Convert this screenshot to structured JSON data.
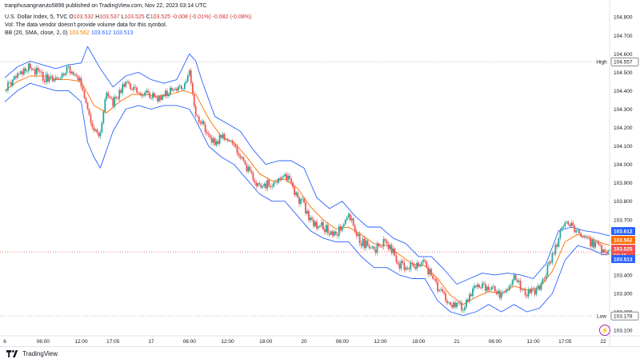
{
  "publisher_line": "tranphusangnaruto5896 published on TradingView.com, Nov 22, 2023 03:14 UTC",
  "symbol_line": {
    "name": "U.S. Dollar Index, 5, TVC",
    "o_label": "O",
    "o": "103.532",
    "h_label": "H",
    "h": "103.537",
    "l_label": "L",
    "l": "103.525",
    "c_label": "C",
    "c": "103.525",
    "change": "-0.008 (-0.01%)",
    "change2": "-0.082 (-0.08%)"
  },
  "volume_line": "Vol: The data vendor doesn't provide volume data for this symbol.",
  "bb_line": {
    "label": "BB (20, SMA, close, 2, 0)",
    "basis": "103.562",
    "upper": "103.612",
    "lower": "103.513"
  },
  "brand": "TradingView",
  "colors": {
    "up": "#26a69a",
    "down": "#ef5350",
    "basis": "#ff6d00",
    "band": "#2962ff",
    "price_tag": "#ef5350"
  },
  "chart_data": {
    "type": "line",
    "title": "U.S. Dollar Index, 5, TVC",
    "ylim": [
      103.07,
      104.84
    ],
    "y_ticks": [
      "104.800",
      "104.700",
      "104.600",
      "104.500",
      "104.400",
      "104.300",
      "104.200",
      "104.100",
      "104.000",
      "103.900",
      "103.800",
      "103.700",
      "103.600",
      "103.500",
      "103.400",
      "103.300",
      "103.200",
      "103.100"
    ],
    "x_ticks": [
      {
        "x": 0,
        "label": "6"
      },
      {
        "x": 12,
        "label": "06:00"
      },
      {
        "x": 24,
        "label": "12:00"
      },
      {
        "x": 34,
        "label": "17:05"
      },
      {
        "x": 46,
        "label": "17"
      },
      {
        "x": 58,
        "label": "06:00"
      },
      {
        "x": 70,
        "label": "12:00"
      },
      {
        "x": 82,
        "label": "18:00"
      },
      {
        "x": 94,
        "label": "20"
      },
      {
        "x": 106,
        "label": "06:00"
      },
      {
        "x": 118,
        "label": "12:00"
      },
      {
        "x": 130,
        "label": "18:00"
      },
      {
        "x": 142,
        "label": "21"
      },
      {
        "x": 154,
        "label": "06:00"
      },
      {
        "x": 166,
        "label": "12:00"
      },
      {
        "x": 176,
        "label": "17:05"
      },
      {
        "x": 188,
        "label": "22"
      }
    ],
    "high": {
      "label": "High",
      "value": "104.557"
    },
    "low": {
      "label": "Low",
      "value": "103.178"
    },
    "series": [
      {
        "kind": "close",
        "x": [
          0,
          4,
          8,
          12,
          16,
          20,
          24,
          26,
          28,
          30,
          32,
          34,
          36,
          38,
          40,
          44,
          48,
          52,
          56,
          58,
          60,
          62,
          64,
          66,
          68,
          72,
          76,
          80,
          84,
          88,
          92,
          94,
          96,
          100,
          104,
          108,
          112,
          116,
          120,
          124,
          128,
          132,
          136,
          140,
          144,
          148,
          152,
          156,
          160,
          164,
          168,
          170,
          172,
          176,
          180,
          184,
          188,
          190
        ],
        "values": [
          104.4,
          104.5,
          104.53,
          104.47,
          104.45,
          104.52,
          104.44,
          104.3,
          104.2,
          104.15,
          104.4,
          104.33,
          104.38,
          104.45,
          104.4,
          104.38,
          104.36,
          104.4,
          104.41,
          104.52,
          104.28,
          104.22,
          104.18,
          104.1,
          104.15,
          104.12,
          103.98,
          103.88,
          103.9,
          103.95,
          103.82,
          103.78,
          103.69,
          103.66,
          103.62,
          103.72,
          103.58,
          103.54,
          103.58,
          103.46,
          103.44,
          103.46,
          103.33,
          103.24,
          103.23,
          103.33,
          103.34,
          103.28,
          103.38,
          103.3,
          103.32,
          103.42,
          103.5,
          103.7,
          103.62,
          103.58,
          103.54,
          103.53
        ]
      },
      {
        "name": "",
        "kind": "basis",
        "x": [
          0,
          4,
          8,
          12,
          16,
          20,
          24,
          28,
          32,
          36,
          40,
          44,
          48,
          52,
          56,
          60,
          64,
          68,
          72,
          76,
          80,
          84,
          88,
          92,
          96,
          100,
          104,
          108,
          112,
          116,
          120,
          124,
          128,
          132,
          136,
          140,
          144,
          148,
          152,
          156,
          160,
          164,
          168,
          172,
          176,
          180,
          184,
          188,
          190
        ],
        "values": [
          104.4,
          104.45,
          104.48,
          104.48,
          104.46,
          104.46,
          104.45,
          104.32,
          104.28,
          104.34,
          104.38,
          104.38,
          104.37,
          104.38,
          104.4,
          104.38,
          104.25,
          104.15,
          104.12,
          104.04,
          103.95,
          103.91,
          103.92,
          103.87,
          103.77,
          103.7,
          103.65,
          103.66,
          103.62,
          103.57,
          103.56,
          103.51,
          103.46,
          103.45,
          103.38,
          103.29,
          103.24,
          103.28,
          103.31,
          103.3,
          103.34,
          103.32,
          103.33,
          103.42,
          103.58,
          103.62,
          103.6,
          103.57,
          103.562
        ]
      },
      {
        "name": "",
        "kind": "upper",
        "x": [
          0,
          4,
          8,
          12,
          16,
          20,
          24,
          26,
          30,
          34,
          38,
          42,
          46,
          50,
          54,
          58,
          60,
          62,
          66,
          70,
          74,
          78,
          82,
          86,
          90,
          94,
          98,
          102,
          106,
          110,
          114,
          118,
          122,
          126,
          130,
          134,
          138,
          142,
          146,
          150,
          154,
          158,
          162,
          166,
          170,
          174,
          178,
          182,
          186,
          190
        ],
        "values": [
          104.47,
          104.53,
          104.56,
          104.54,
          104.52,
          104.54,
          104.55,
          104.64,
          104.52,
          104.42,
          104.48,
          104.5,
          104.46,
          104.44,
          104.46,
          104.6,
          104.56,
          104.45,
          104.26,
          104.22,
          104.18,
          104.08,
          104.0,
          104.02,
          104.02,
          103.98,
          103.82,
          103.76,
          103.8,
          103.72,
          103.66,
          103.66,
          103.6,
          103.57,
          103.5,
          103.5,
          103.43,
          103.35,
          103.38,
          103.41,
          103.4,
          103.41,
          103.4,
          103.38,
          103.46,
          103.64,
          103.66,
          103.64,
          103.63,
          103.612
        ]
      },
      {
        "name": "",
        "kind": "lower",
        "x": [
          0,
          4,
          8,
          12,
          16,
          20,
          24,
          26,
          28,
          30,
          34,
          38,
          42,
          46,
          50,
          54,
          58,
          60,
          64,
          68,
          72,
          76,
          80,
          84,
          88,
          92,
          96,
          100,
          104,
          108,
          112,
          116,
          120,
          124,
          128,
          132,
          136,
          140,
          144,
          148,
          152,
          156,
          160,
          164,
          168,
          172,
          176,
          180,
          184,
          188,
          190
        ],
        "values": [
          104.34,
          104.4,
          104.44,
          104.42,
          104.4,
          104.4,
          104.34,
          104.12,
          104.04,
          103.98,
          104.18,
          104.3,
          104.32,
          104.3,
          104.32,
          104.32,
          104.3,
          104.24,
          104.1,
          104.04,
          104.0,
          103.92,
          103.84,
          103.8,
          103.8,
          103.72,
          103.64,
          103.6,
          103.58,
          103.58,
          103.5,
          103.44,
          103.44,
          103.4,
          103.38,
          103.38,
          103.26,
          103.2,
          103.18,
          103.2,
          103.24,
          103.2,
          103.24,
          103.2,
          103.22,
          103.3,
          103.48,
          103.56,
          103.54,
          103.51,
          103.513
        ]
      }
    ],
    "price_tags": [
      {
        "value": 103.612,
        "label": "103.612",
        "color": "#2962ff"
      },
      {
        "value": 103.562,
        "label": "103.562",
        "color": "#ff6d00"
      },
      {
        "value": 103.525,
        "label": "103.525",
        "sub": "00:45",
        "color": "#ef5350"
      },
      {
        "value": 103.513,
        "label": "103.513",
        "color": "#2962ff"
      }
    ]
  }
}
